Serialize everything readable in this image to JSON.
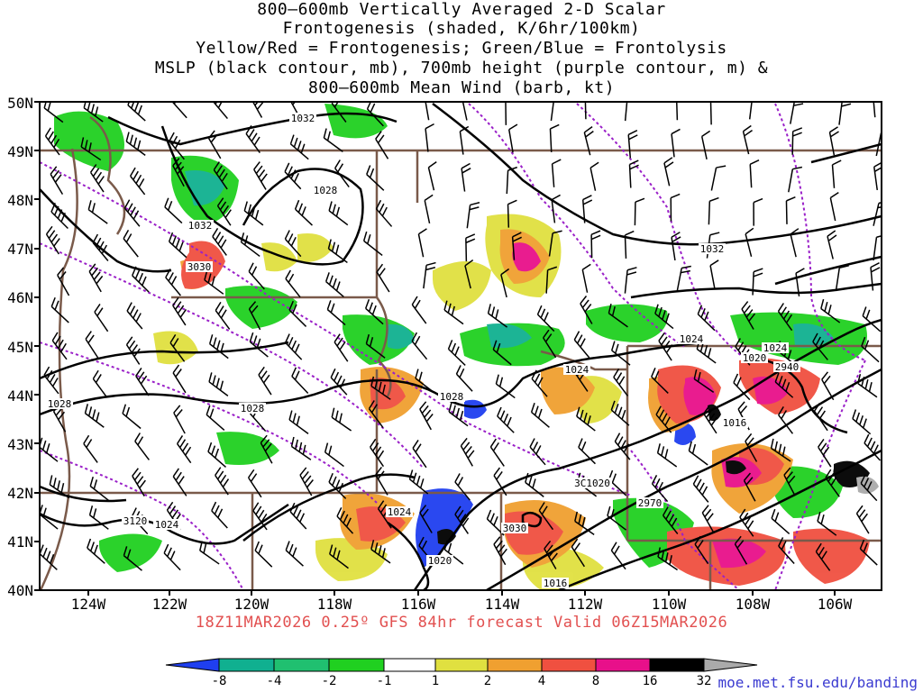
{
  "title": {
    "lines": [
      "800—600mb Vertically Averaged 2-D Scalar",
      "Frontogenesis (shaded, K/6hr/100km)",
      "Yellow/Red = Frontogenesis;  Green/Blue = Frontolysis",
      "MSLP (black contour, mb), 700mb height (purple contour, m) &",
      "800—600mb Mean Wind (barb, kt)"
    ]
  },
  "axes": {
    "lat_labels": [
      "50N",
      "49N",
      "48N",
      "47N",
      "46N",
      "45N",
      "44N",
      "43N",
      "42N",
      "41N",
      "40N"
    ],
    "lon_labels": [
      "124W",
      "122W",
      "120W",
      "118W",
      "116W",
      "114W",
      "112W",
      "110W",
      "108W",
      "106W"
    ]
  },
  "footer": "18Z11MAR2026 0.25º GFS 84hr forecast Valid 06Z15MAR2026",
  "colorbar": {
    "labels": [
      "-8",
      "-4",
      "-2",
      "-1",
      "1",
      "2",
      "4",
      "8",
      "16",
      "32"
    ],
    "colors": [
      "#1f3ff0",
      "#10b090",
      "#20c070",
      "#20d020",
      "#ffffff",
      "#e0e040",
      "#f0a030",
      "#f05040",
      "#e8108a",
      "#000000",
      "#aaaaaa"
    ]
  },
  "contour_labels": {
    "mslp": [
      "1032",
      "1028",
      "1032",
      "1028",
      "1028",
      "1024",
      "1028",
      "1024",
      "1024",
      "1020",
      "1016",
      "1020",
      "1020",
      "1024",
      "1016",
      "1032",
      "1024",
      "1020"
    ],
    "height": [
      "3030",
      "3120",
      "2940",
      "2970",
      "3030",
      "3C1020"
    ]
  },
  "colors": {
    "border": "#7a5a4a",
    "mslp": "#000000",
    "height": "#9a20c8",
    "barb": "#000000"
  },
  "credit": "moe.met.fsu.edu/banding"
}
